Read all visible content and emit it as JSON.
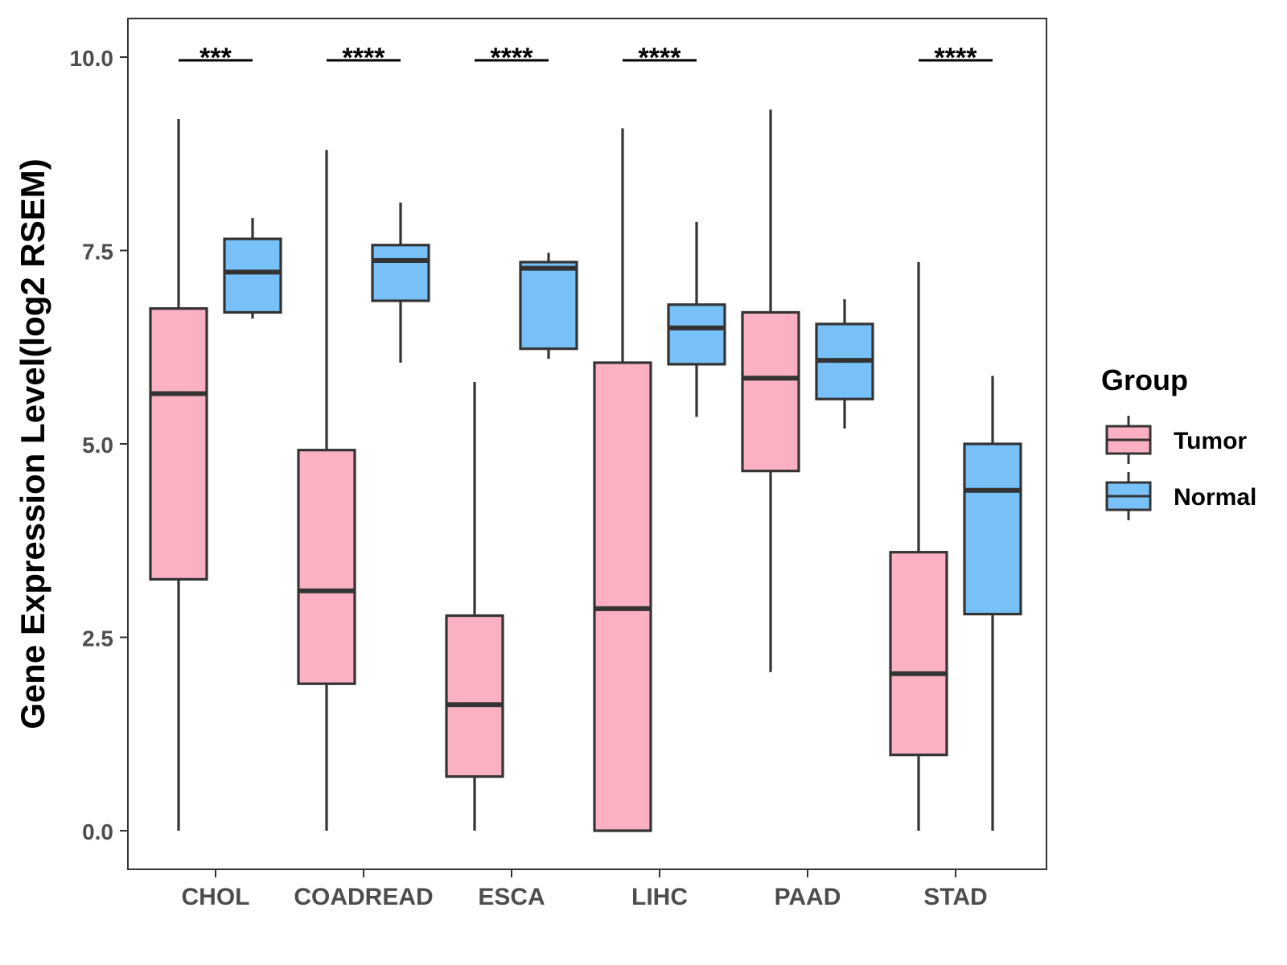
{
  "chart_data": {
    "type": "boxplot",
    "title": "",
    "xlabel": "",
    "ylabel": "Gene Expression Level(log2 RSEM)",
    "ylim": [
      -0.5,
      10.5
    ],
    "yticks": [
      0.0,
      2.5,
      5.0,
      7.5,
      10.0
    ],
    "ytick_labels": [
      "0.0",
      "2.5",
      "5.0",
      "7.5",
      "10.0"
    ],
    "categories": [
      "CHOL",
      "COADREAD",
      "ESCA",
      "LIHC",
      "PAAD",
      "STAD"
    ],
    "legend": {
      "title": "Group",
      "position": "right",
      "entries": [
        {
          "name": "Tumor",
          "color": "#fcb1c3"
        },
        {
          "name": "Normal",
          "color": "#78c1f8"
        }
      ]
    },
    "series": [
      {
        "name": "Tumor",
        "color": "#fcb1c3",
        "boxes": [
          {
            "min": 0.0,
            "q1": 3.25,
            "median": 5.65,
            "q3": 6.75,
            "max": 9.2
          },
          {
            "min": 0.0,
            "q1": 1.9,
            "median": 3.1,
            "q3": 4.92,
            "max": 8.8
          },
          {
            "min": 0.0,
            "q1": 0.7,
            "median": 1.63,
            "q3": 2.78,
            "max": 5.8
          },
          {
            "min": 0.0,
            "q1": 0.0,
            "median": 2.87,
            "q3": 6.05,
            "max": 9.08
          },
          {
            "min": 2.05,
            "q1": 4.65,
            "median": 5.85,
            "q3": 6.7,
            "max": 9.32
          },
          {
            "min": 0.0,
            "q1": 0.98,
            "median": 2.03,
            "q3": 3.6,
            "max": 7.35
          }
        ]
      },
      {
        "name": "Normal",
        "color": "#78c1f8",
        "boxes": [
          {
            "min": 6.62,
            "q1": 6.7,
            "median": 7.22,
            "q3": 7.65,
            "max": 7.92
          },
          {
            "min": 6.05,
            "q1": 6.85,
            "median": 7.37,
            "q3": 7.57,
            "max": 8.12
          },
          {
            "min": 6.1,
            "q1": 6.23,
            "median": 7.27,
            "q3": 7.35,
            "max": 7.47
          },
          {
            "min": 5.35,
            "q1": 6.03,
            "median": 6.5,
            "q3": 6.8,
            "max": 7.87
          },
          {
            "min": 5.2,
            "q1": 5.58,
            "median": 6.08,
            "q3": 6.55,
            "max": 6.87
          },
          {
            "min": 0.0,
            "q1": 2.8,
            "median": 4.4,
            "q3": 5.0,
            "max": 5.88
          }
        ]
      }
    ],
    "significance": [
      {
        "category": "CHOL",
        "label": "***"
      },
      {
        "category": "COADREAD",
        "label": "****"
      },
      {
        "category": "ESCA",
        "label": "****"
      },
      {
        "category": "LIHC",
        "label": "****"
      },
      {
        "category": "STAD",
        "label": "****"
      }
    ],
    "significance_level": 10.0
  }
}
